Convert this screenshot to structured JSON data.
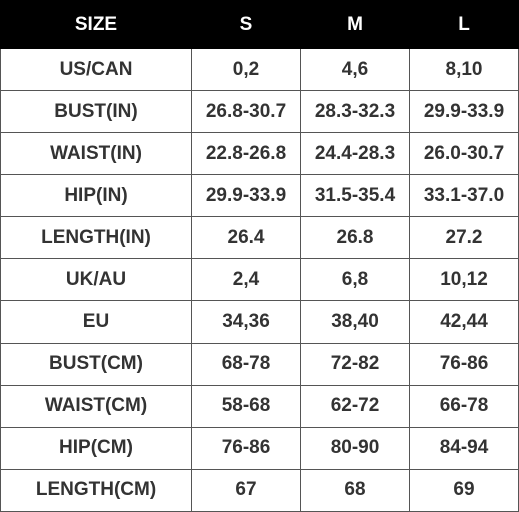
{
  "table": {
    "header": [
      "SIZE",
      "S",
      "M",
      "L"
    ],
    "rows": [
      [
        "US/CAN",
        "0,2",
        "4,6",
        "8,10"
      ],
      [
        "BUST(IN)",
        "26.8-30.7",
        "28.3-32.3",
        "29.9-33.9"
      ],
      [
        "WAIST(IN)",
        "22.8-26.8",
        "24.4-28.3",
        "26.0-30.7"
      ],
      [
        "HIP(IN)",
        "29.9-33.9",
        "31.5-35.4",
        "33.1-37.0"
      ],
      [
        "LENGTH(IN)",
        "26.4",
        "26.8",
        "27.2"
      ],
      [
        "UK/AU",
        "2,4",
        "6,8",
        "10,12"
      ],
      [
        "EU",
        "34,36",
        "38,40",
        "42,44"
      ],
      [
        "BUST(CM)",
        "68-78",
        "72-82",
        "76-86"
      ],
      [
        "WAIST(CM)",
        "58-68",
        "62-72",
        "66-78"
      ],
      [
        "HIP(CM)",
        "76-86",
        "80-90",
        "84-94"
      ],
      [
        "LENGTH(CM)",
        "67",
        "68",
        "69"
      ]
    ]
  }
}
